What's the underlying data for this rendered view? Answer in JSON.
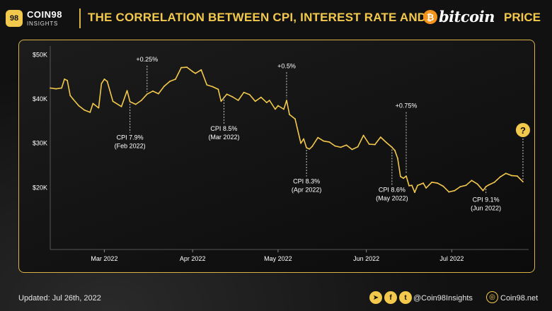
{
  "brand": {
    "logo_text": "98",
    "name": "COIN98",
    "sub": "INSIGHTS"
  },
  "header": {
    "title": "THE CORRELATION BETWEEN CPI, INTEREST RATE AND",
    "coin_symbol": "₿",
    "coin_word": "bitcoin",
    "price_word": "PRICE"
  },
  "colors": {
    "accent": "#f2c94c",
    "line": "#f2c94c",
    "bitcoin": "#f7931a",
    "background": "#111111"
  },
  "chart_data": {
    "type": "line",
    "title": "",
    "xlabel": "",
    "ylabel": "",
    "ylim": [
      6000,
      52000
    ],
    "yticks": [
      {
        "value": 50000,
        "label": "$50K"
      },
      {
        "value": 40000,
        "label": "$40K"
      },
      {
        "value": 30000,
        "label": "$30K"
      },
      {
        "value": 20000,
        "label": "$20K"
      }
    ],
    "xlim": [
      "2022-02-10",
      "2022-07-28"
    ],
    "xticks": [
      {
        "date": "2022-03-01",
        "label": "Mar 2022"
      },
      {
        "date": "2022-04-01",
        "label": "Apr 2022"
      },
      {
        "date": "2022-05-01",
        "label": "May 2022"
      },
      {
        "date": "2022-06-01",
        "label": "Jun 2022"
      },
      {
        "date": "2022-07-01",
        "label": "Jul 2022"
      }
    ],
    "series": [
      {
        "points": [
          [
            "2022-02-10",
            42500
          ],
          [
            "2022-02-12",
            42300
          ],
          [
            "2022-02-14",
            42500
          ],
          [
            "2022-02-15",
            44500
          ],
          [
            "2022-02-16",
            44200
          ],
          [
            "2022-02-17",
            40800
          ],
          [
            "2022-02-18",
            40000
          ],
          [
            "2022-02-20",
            38500
          ],
          [
            "2022-02-22",
            37500
          ],
          [
            "2022-02-24",
            37000
          ],
          [
            "2022-02-25",
            39000
          ],
          [
            "2022-02-27",
            38000
          ],
          [
            "2022-02-28",
            43500
          ],
          [
            "2022-03-01",
            44500
          ],
          [
            "2022-03-02",
            44000
          ],
          [
            "2022-03-04",
            39500
          ],
          [
            "2022-03-07",
            38300
          ],
          [
            "2022-03-09",
            41900
          ],
          [
            "2022-03-10",
            39400
          ],
          [
            "2022-03-12",
            38800
          ],
          [
            "2022-03-14",
            39700
          ],
          [
            "2022-03-16",
            41100
          ],
          [
            "2022-03-18",
            41800
          ],
          [
            "2022-03-20",
            41200
          ],
          [
            "2022-03-22",
            42900
          ],
          [
            "2022-03-24",
            44000
          ],
          [
            "2022-03-26",
            44500
          ],
          [
            "2022-03-28",
            47100
          ],
          [
            "2022-03-30",
            47200
          ],
          [
            "2022-04-01",
            46200
          ],
          [
            "2022-04-02",
            45800
          ],
          [
            "2022-04-04",
            46600
          ],
          [
            "2022-04-06",
            43200
          ],
          [
            "2022-04-08",
            42800
          ],
          [
            "2022-04-10",
            42200
          ],
          [
            "2022-04-11",
            39500
          ],
          [
            "2022-04-13",
            41100
          ],
          [
            "2022-04-15",
            40500
          ],
          [
            "2022-04-17",
            39700
          ],
          [
            "2022-04-19",
            41500
          ],
          [
            "2022-04-21",
            41000
          ],
          [
            "2022-04-23",
            39500
          ],
          [
            "2022-04-25",
            40400
          ],
          [
            "2022-04-27",
            39200
          ],
          [
            "2022-04-28",
            39700
          ],
          [
            "2022-04-30",
            37700
          ],
          [
            "2022-05-01",
            38500
          ],
          [
            "2022-05-03",
            37700
          ],
          [
            "2022-05-04",
            39700
          ],
          [
            "2022-05-05",
            36500
          ],
          [
            "2022-05-07",
            35500
          ],
          [
            "2022-05-09",
            30000
          ],
          [
            "2022-05-10",
            31000
          ],
          [
            "2022-05-11",
            29000
          ],
          [
            "2022-05-12",
            28700
          ],
          [
            "2022-05-13",
            29300
          ],
          [
            "2022-05-15",
            31300
          ],
          [
            "2022-05-17",
            30500
          ],
          [
            "2022-05-19",
            30300
          ],
          [
            "2022-05-21",
            29400
          ],
          [
            "2022-05-23",
            29100
          ],
          [
            "2022-05-25",
            29600
          ],
          [
            "2022-05-27",
            28600
          ],
          [
            "2022-05-29",
            29200
          ],
          [
            "2022-05-31",
            31800
          ],
          [
            "2022-06-02",
            29800
          ],
          [
            "2022-06-04",
            29700
          ],
          [
            "2022-06-06",
            31400
          ],
          [
            "2022-06-08",
            30200
          ],
          [
            "2022-06-10",
            29100
          ],
          [
            "2022-06-11",
            28400
          ],
          [
            "2022-06-12",
            26600
          ],
          [
            "2022-06-13",
            22500
          ],
          [
            "2022-06-14",
            22100
          ],
          [
            "2022-06-15",
            22600
          ],
          [
            "2022-06-16",
            20400
          ],
          [
            "2022-06-17",
            20500
          ],
          [
            "2022-06-18",
            18900
          ],
          [
            "2022-06-19",
            20500
          ],
          [
            "2022-06-21",
            21000
          ],
          [
            "2022-06-22",
            19900
          ],
          [
            "2022-06-24",
            21200
          ],
          [
            "2022-06-26",
            21000
          ],
          [
            "2022-06-28",
            20300
          ],
          [
            "2022-06-30",
            19000
          ],
          [
            "2022-07-02",
            19300
          ],
          [
            "2022-07-04",
            20200
          ],
          [
            "2022-07-06",
            20500
          ],
          [
            "2022-07-08",
            21600
          ],
          [
            "2022-07-10",
            20800
          ],
          [
            "2022-07-12",
            19300
          ],
          [
            "2022-07-13",
            20200
          ],
          [
            "2022-07-14",
            20600
          ],
          [
            "2022-07-16",
            21200
          ],
          [
            "2022-07-18",
            22400
          ],
          [
            "2022-07-20",
            23200
          ],
          [
            "2022-07-22",
            22700
          ],
          [
            "2022-07-24",
            22600
          ],
          [
            "2022-07-26",
            21300
          ]
        ]
      }
    ],
    "annotations": [
      {
        "kind": "cpi",
        "date": "2022-03-10",
        "value": 39400,
        "line1": "CPI 7.9%",
        "line2": "(Feb 2022)",
        "label_value": 30500
      },
      {
        "kind": "cpi",
        "date": "2022-04-12",
        "value": 41000,
        "line1": "CPI 8.5%",
        "line2": "(Mar 2022)",
        "label_value": 32500
      },
      {
        "kind": "cpi",
        "date": "2022-05-11",
        "value": 29000,
        "line1": "CPI 8.3%",
        "line2": "(Apr 2022)",
        "label_value": 20600
      },
      {
        "kind": "cpi",
        "date": "2022-06-10",
        "value": 29100,
        "line1": "CPI 8.6%",
        "line2": "(May 2022)",
        "label_value": 18700
      },
      {
        "kind": "cpi",
        "date": "2022-07-13",
        "value": 20200,
        "line1": "CPI 9.1%",
        "line2": "(Jun 2022)",
        "label_value": 16500
      },
      {
        "kind": "rate",
        "date": "2022-03-16",
        "value": 41100,
        "label": "+0.25%",
        "label_value": 48500
      },
      {
        "kind": "rate",
        "date": "2022-05-04",
        "value": 39700,
        "label": "+0.5%",
        "label_value": 47000
      },
      {
        "kind": "rate",
        "date": "2022-06-15",
        "value": 22600,
        "label": "+0.75%",
        "label_value": 38000
      },
      {
        "kind": "future",
        "date": "2022-07-26",
        "value": 21300,
        "label": "?",
        "label_value": 33000
      }
    ]
  },
  "footer": {
    "updated": "Updated: Jul 26th, 2022",
    "social": [
      {
        "icon": "telegram-icon",
        "glyph": "➤"
      },
      {
        "icon": "facebook-icon",
        "glyph": "f"
      },
      {
        "icon": "twitter-icon",
        "glyph": "t"
      }
    ],
    "handle": "@Coin98Insights",
    "site_icon": "globe-icon",
    "site": "Coin98.net"
  }
}
